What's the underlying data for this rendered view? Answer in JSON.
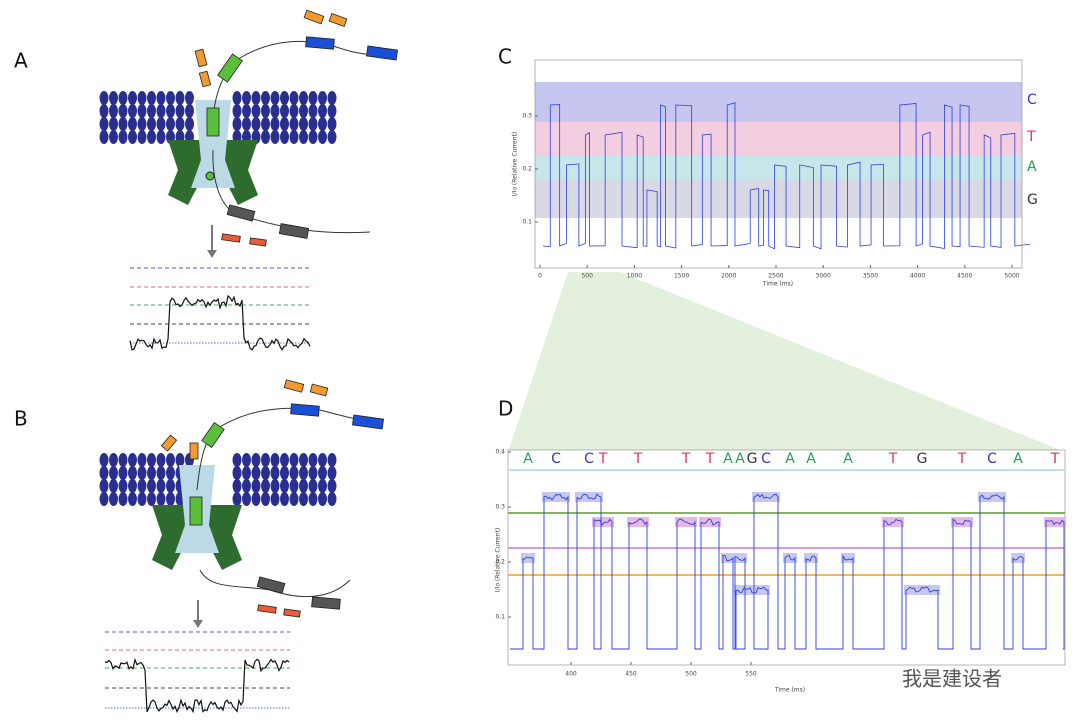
{
  "panels": {
    "a": "A",
    "b": "B",
    "c": "C",
    "d": "D"
  },
  "panel_c": {
    "y_label": "I/Io (Relative Current)",
    "x_label": "Time (ms)",
    "xticks": [
      0,
      500,
      1000,
      1500,
      2000,
      2500,
      3000,
      3500,
      4000,
      4500,
      5000
    ],
    "yticks": [
      0.1,
      0.2,
      0.3
    ],
    "bases": [
      "C",
      "T",
      "A",
      "G"
    ]
  },
  "panel_d": {
    "y_label": "I/Io (Relative Current)",
    "x_label": "Time (ms)",
    "xticks": [
      400,
      450,
      500,
      550
    ],
    "yticks": [
      0.1,
      0.2,
      0.3,
      0.4
    ],
    "bases": [
      "A",
      "C",
      "C",
      "T",
      "T",
      "T",
      "T",
      "A",
      "A",
      "G",
      "C",
      "A",
      "A",
      "A",
      "T",
      "G",
      "T",
      "C",
      "A",
      "T"
    ]
  },
  "watermark": "我是建设者"
}
